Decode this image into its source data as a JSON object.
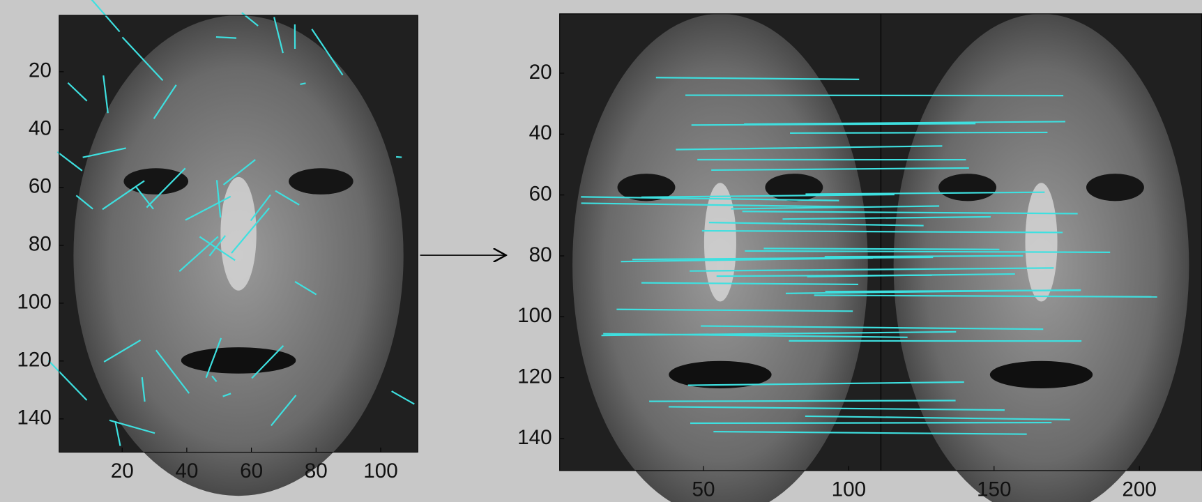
{
  "panels": [
    {
      "xlim": [
        0.5,
        111.5
      ],
      "ylim": [
        0.5,
        151.5
      ],
      "xticks": [
        20,
        40,
        60,
        80,
        100
      ],
      "yticks": [
        20,
        40,
        60,
        80,
        100,
        120,
        140
      ]
    },
    {
      "xlim": [
        0.5,
        221.5
      ],
      "ylim": [
        0.5,
        150.5
      ],
      "xticks": [
        50,
        100,
        150,
        200
      ],
      "yticks": [
        20,
        40,
        60,
        80,
        100,
        120,
        140
      ]
    }
  ]
}
